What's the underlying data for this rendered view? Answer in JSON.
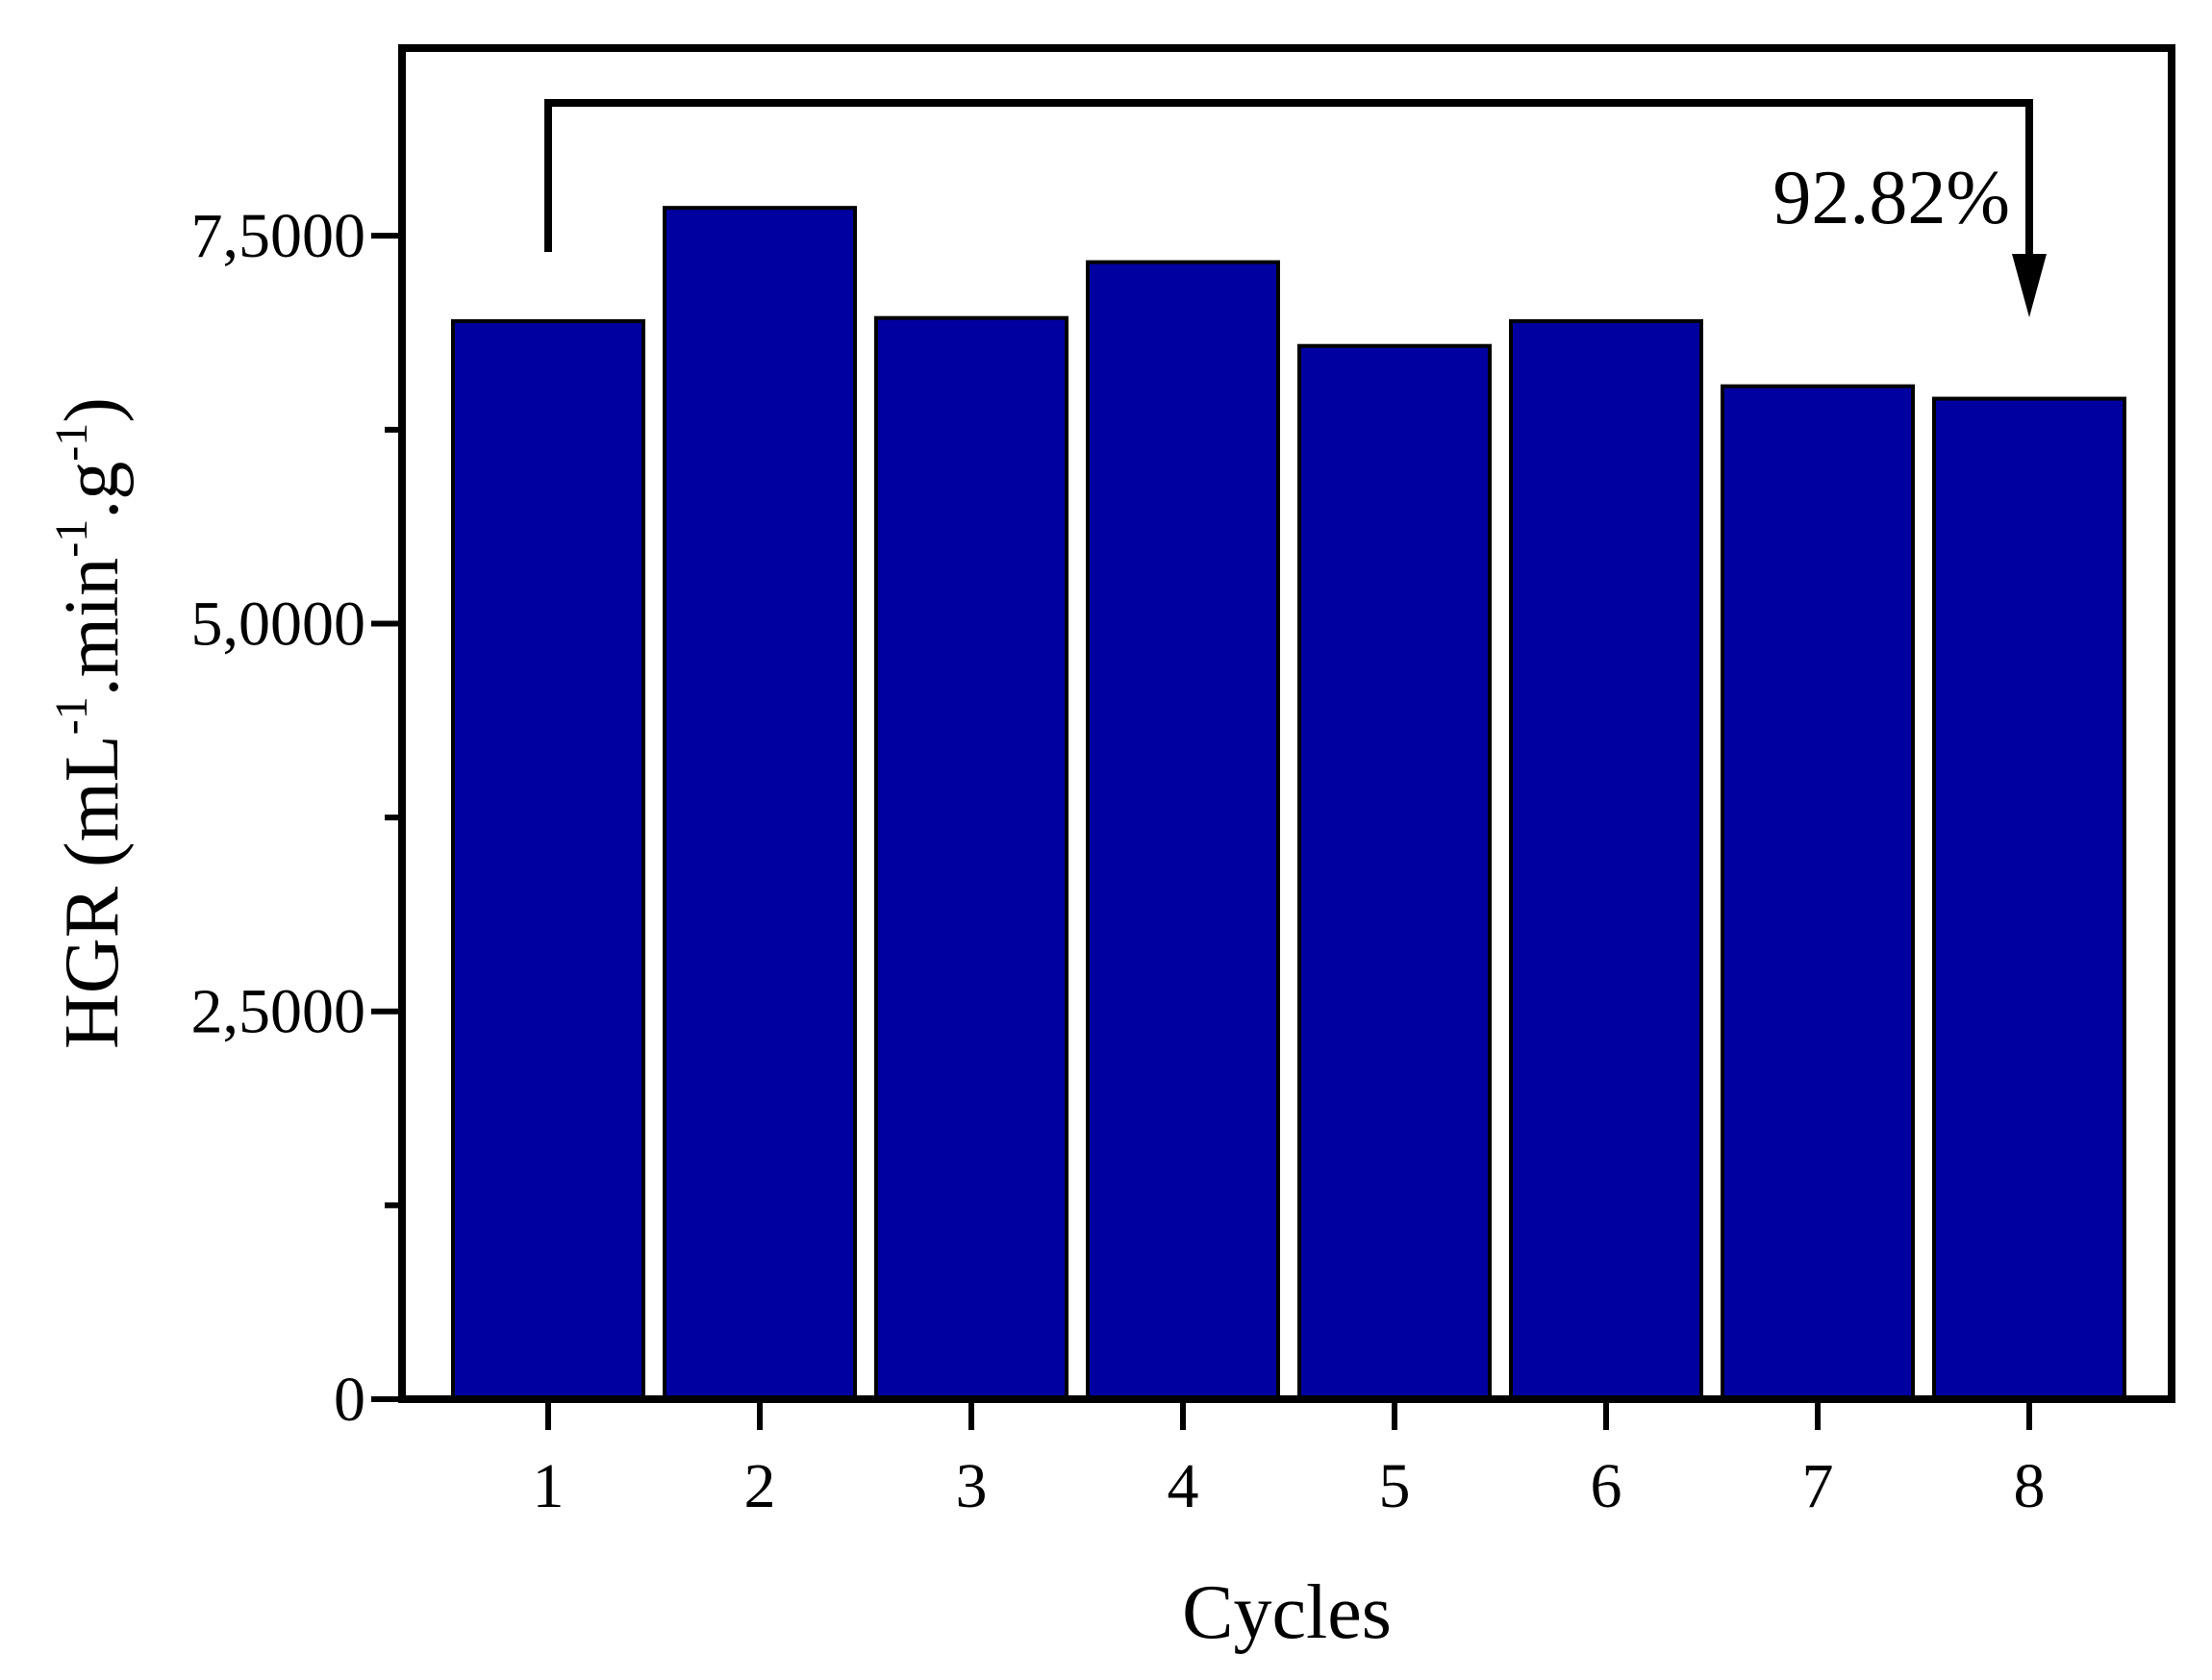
{
  "chart_data": {
    "type": "bar",
    "categories": [
      "1",
      "2",
      "3",
      "4",
      "5",
      "6",
      "7",
      "8"
    ],
    "values": [
      6950,
      7680,
      6970,
      7330,
      6790,
      6950,
      6530,
      6450
    ],
    "xlabel": "Cycles",
    "ylabel": {
      "parts": [
        "HGR (mL",
        "-1",
        ".min",
        "-1",
        ".g",
        "-1",
        ")"
      ]
    },
    "ylim": [
      0,
      8710
    ],
    "y_major_ticks": [
      0,
      2500,
      5000,
      7500
    ],
    "y_tick_labels": [
      "0",
      "2,5000",
      "5,0000",
      "7,5000"
    ],
    "y_minor_ticks": [
      1250,
      3750,
      6250
    ],
    "annotation": {
      "text": "92.82%",
      "from_category": "1",
      "to_category": "8"
    },
    "grid": false,
    "legend": false,
    "colors": {
      "bar_fill": "#0000a0",
      "bar_stroke": "#000000",
      "axis": "#000000"
    }
  }
}
